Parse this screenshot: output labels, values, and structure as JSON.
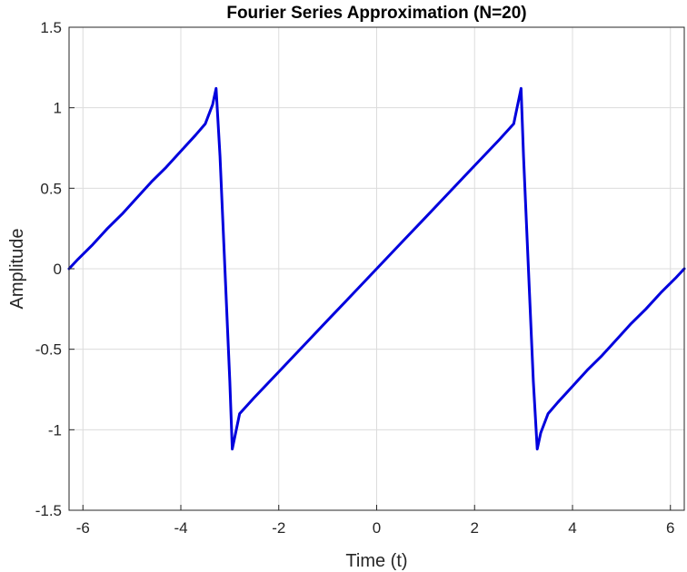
{
  "chart_data": {
    "type": "line",
    "title": "Fourier Series Approximation (N=20)",
    "xlabel": "Time (t)",
    "ylabel": "Amplitude",
    "xlim": [
      -6.2832,
      6.2832
    ],
    "ylim": [
      -1.5,
      1.5
    ],
    "xticks": [
      -6,
      -4,
      -2,
      0,
      2,
      4,
      6
    ],
    "yticks": [
      -1.5,
      -1,
      -0.5,
      0,
      0.5,
      1,
      1.5
    ],
    "xtick_labels": [
      "-6",
      "-4",
      "-2",
      "0",
      "2",
      "4",
      "6"
    ],
    "ytick_labels": [
      "-1.5",
      "-1",
      "-0.5",
      "0",
      "0.5",
      "1",
      "1.5"
    ],
    "grid": true,
    "series": [
      {
        "color": "#0000dd",
        "x": [
          -6.2832,
          -6.1,
          -5.8,
          -5.5,
          -5.2,
          -4.9,
          -4.6,
          -4.3,
          -4.0,
          -3.7,
          -3.5,
          -3.35,
          -3.28,
          -3.2,
          -3.1,
          -3.0,
          -2.95,
          -2.8,
          -2.5,
          -2.0,
          -1.5,
          -1.0,
          -0.5,
          0.0,
          0.5,
          1.0,
          1.5,
          2.0,
          2.5,
          2.8,
          2.95,
          3.0,
          3.1,
          3.2,
          3.28,
          3.35,
          3.5,
          3.7,
          4.0,
          4.3,
          4.6,
          4.9,
          5.2,
          5.5,
          5.8,
          6.1,
          6.2832
        ],
        "y": [
          0.0,
          0.06,
          0.15,
          0.25,
          0.34,
          0.44,
          0.54,
          0.63,
          0.73,
          0.83,
          0.9,
          1.02,
          1.12,
          0.7,
          0.0,
          -0.7,
          -1.12,
          -0.9,
          -0.8,
          -0.64,
          -0.48,
          -0.32,
          -0.16,
          0.0,
          0.16,
          0.32,
          0.48,
          0.64,
          0.8,
          0.9,
          1.12,
          0.7,
          0.0,
          -0.7,
          -1.12,
          -1.02,
          -0.9,
          -0.83,
          -0.73,
          -0.63,
          -0.54,
          -0.44,
          -0.34,
          -0.25,
          -0.15,
          -0.06,
          0.0
        ]
      }
    ]
  }
}
